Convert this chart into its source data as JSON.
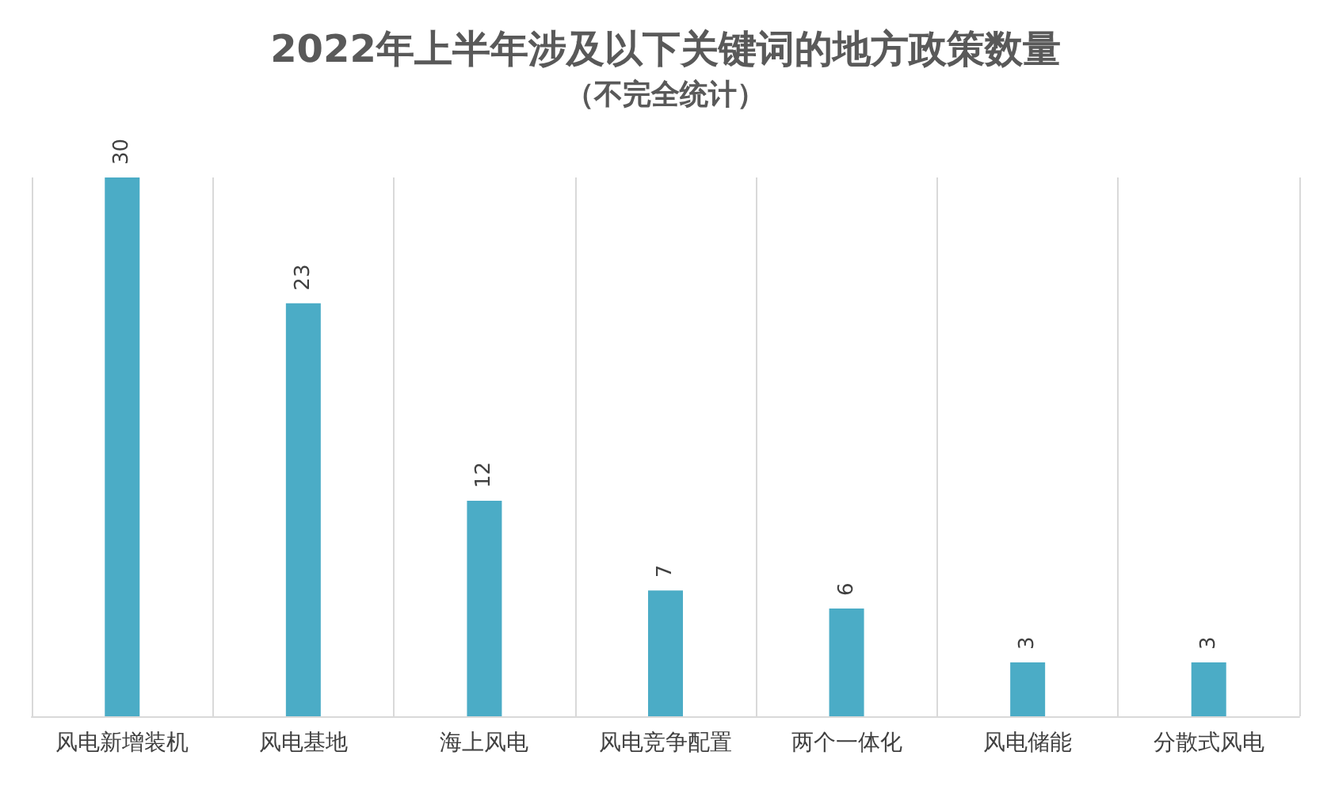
{
  "chart_data": {
    "type": "bar",
    "title": "2022年上半年涉及以下关键词的地方政策数量",
    "subtitle": "（不完全统计）",
    "categories": [
      "风电新增装机",
      "风电基地",
      "海上风电",
      "风电竞争配置",
      "两个一体化",
      "风电储能",
      "分散式风电"
    ],
    "values": [
      30,
      23,
      12,
      7,
      6,
      3,
      3
    ],
    "color": "#4bacc6",
    "data_labels": true,
    "grid": "x"
  }
}
